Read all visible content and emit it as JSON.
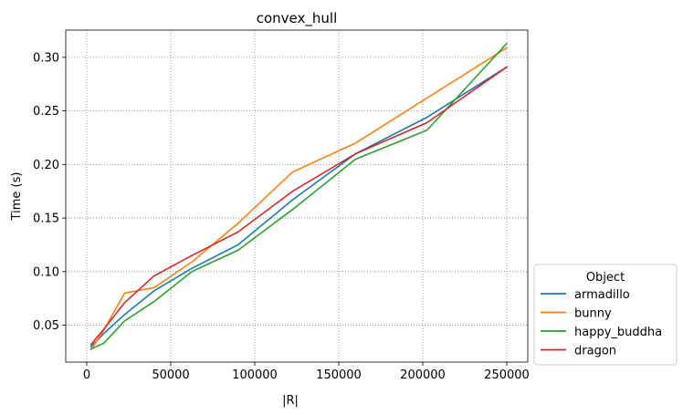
{
  "chart_data": {
    "type": "line",
    "title": "convex_hull",
    "xlabel": "|R|",
    "ylabel": "Time (s)",
    "xlim": [
      -12500,
      262500
    ],
    "ylim": [
      0.0156,
      0.3254
    ],
    "xticks": [
      0,
      50000,
      100000,
      150000,
      200000,
      250000
    ],
    "xtick_labels": [
      "0",
      "50000",
      "100000",
      "150000",
      "200000",
      "250000"
    ],
    "yticks": [
      0.05,
      0.1,
      0.15,
      0.2,
      0.25,
      0.3
    ],
    "ytick_labels": [
      "0.05",
      "0.10",
      "0.15",
      "0.20",
      "0.25",
      "0.30"
    ],
    "grid": true,
    "legend": {
      "title": "Object",
      "placement": "outside-right-bottom"
    },
    "series": [
      {
        "name": "armadillo",
        "color": "#1f77b4",
        "x": [
          2500,
          10000,
          22500,
          40000,
          62500,
          90000,
          122500,
          160000,
          202500,
          250000
        ],
        "y": [
          0.03,
          0.042,
          0.06,
          0.082,
          0.103,
          0.125,
          0.167,
          0.21,
          0.244,
          0.291
        ]
      },
      {
        "name": "bunny",
        "color": "#ff7f0e",
        "x": [
          2500,
          10000,
          22500,
          40000,
          62500,
          90000,
          122500,
          160000,
          202500,
          250000
        ],
        "y": [
          0.027,
          0.045,
          0.08,
          0.085,
          0.109,
          0.145,
          0.193,
          0.22,
          0.262,
          0.309
        ]
      },
      {
        "name": "happy_buddha",
        "color": "#2ca02c",
        "x": [
          2500,
          10000,
          22500,
          40000,
          62500,
          90000,
          122500,
          160000,
          202500,
          250000
        ],
        "y": [
          0.028,
          0.033,
          0.054,
          0.072,
          0.1,
          0.12,
          0.158,
          0.205,
          0.232,
          0.313
        ]
      },
      {
        "name": "dragon",
        "color": "#d62728",
        "x": [
          2500,
          10000,
          22500,
          40000,
          62500,
          90000,
          122500,
          160000,
          202500,
          250000
        ],
        "y": [
          0.032,
          0.046,
          0.071,
          0.096,
          0.115,
          0.137,
          0.175,
          0.21,
          0.239,
          0.291
        ]
      }
    ]
  }
}
